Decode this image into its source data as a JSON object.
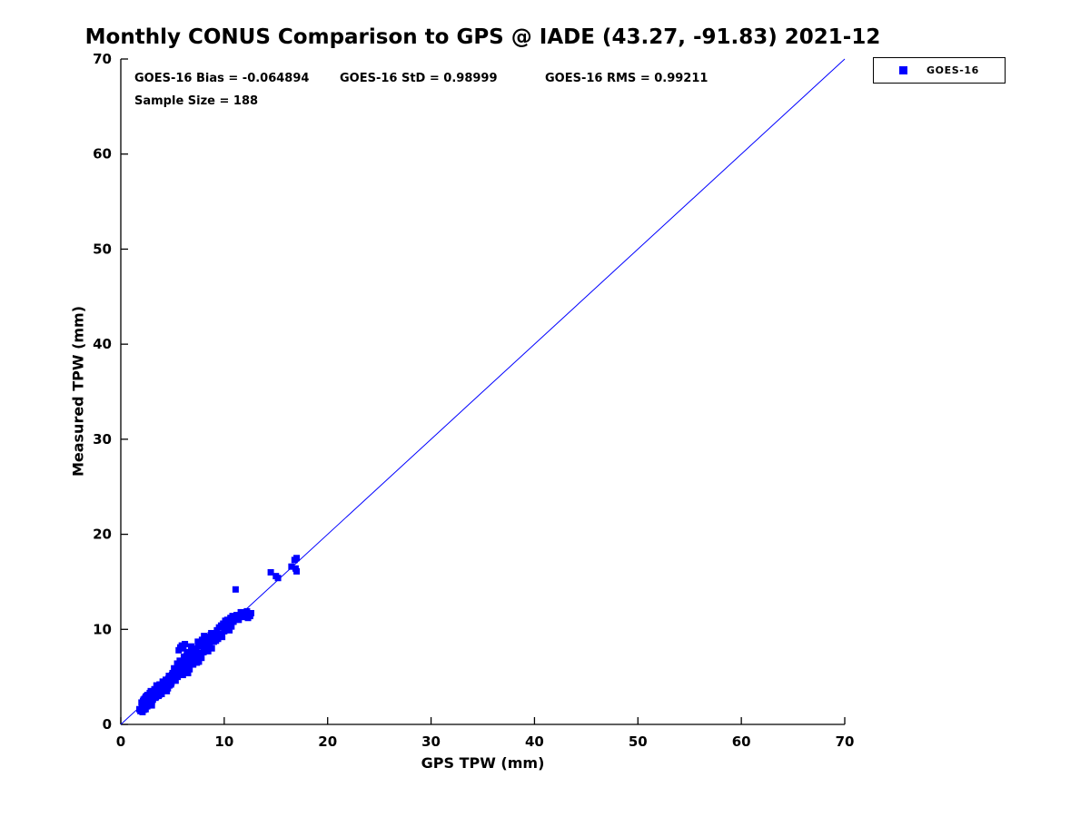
{
  "title": "Monthly CONUS Comparison to GPS @ IADE (43.27, -91.83) 2021-12",
  "annotations": {
    "bias": "GOES-16 Bias = -0.064894",
    "std": "GOES-16 StD = 0.98999",
    "rms": "GOES-16 RMS = 0.99211",
    "sample_size": "Sample Size = 188"
  },
  "legend": {
    "label": "GOES-16",
    "marker_color": "#0000ff"
  },
  "chart_data": {
    "type": "scatter",
    "title": "Monthly CONUS Comparison to GPS @ IADE (43.27, -91.83) 2021-12",
    "xlabel": "GPS TPW (mm)",
    "ylabel": "Measured TPW (mm)",
    "xlim": [
      0,
      70
    ],
    "ylim": [
      0,
      70
    ],
    "xticks": [
      0,
      10,
      20,
      30,
      40,
      50,
      60,
      70
    ],
    "yticks": [
      0,
      10,
      20,
      30,
      40,
      50,
      60,
      70
    ],
    "grid": false,
    "legend_position": "top-right-outside",
    "axis_color": "#000000",
    "reference_line": {
      "from": [
        0,
        0
      ],
      "to": [
        70,
        70
      ],
      "color": "#0000ff",
      "width": 1
    },
    "stats": {
      "bias": -0.064894,
      "std": 0.98999,
      "rms": 0.99211,
      "sample_size": 188
    },
    "series": [
      {
        "name": "GOES-16",
        "marker": "square",
        "marker_size": 7,
        "color": "#0000ff",
        "points": [
          [
            1.9,
            1.4
          ],
          [
            2.0,
            1.5
          ],
          [
            2.1,
            1.3
          ],
          [
            2.2,
            1.8
          ],
          [
            2.0,
            2.3
          ],
          [
            2.3,
            2.0
          ],
          [
            2.4,
            1.6
          ],
          [
            2.5,
            2.2
          ],
          [
            2.2,
            2.6
          ],
          [
            2.6,
            2.4
          ],
          [
            2.7,
            2.0
          ],
          [
            2.8,
            2.5
          ],
          [
            2.5,
            3.0
          ],
          [
            2.9,
            2.8
          ],
          [
            3.0,
            2.4
          ],
          [
            2.1,
            2.0
          ],
          [
            2.3,
            2.7
          ],
          [
            2.6,
            3.1
          ],
          [
            2.8,
            3.3
          ],
          [
            3.0,
            3.2
          ],
          [
            1.8,
            1.6
          ],
          [
            2.4,
            2.9
          ],
          [
            2.7,
            3.0
          ],
          [
            2.9,
            2.2
          ],
          [
            3.0,
            2.7
          ],
          [
            2.05,
            1.75
          ],
          [
            2.45,
            2.5
          ],
          [
            2.75,
            2.6
          ],
          [
            2.95,
            3.4
          ],
          [
            2.15,
            2.45
          ],
          [
            2.55,
            1.9
          ],
          [
            2.85,
            2.9
          ],
          [
            2.35,
            2.1
          ],
          [
            2.65,
            2.75
          ],
          [
            2.25,
            1.55
          ],
          [
            2.9,
            3.5
          ],
          [
            3.0,
            2.0
          ],
          [
            2.5,
            2.75
          ],
          [
            2.2,
            2.2
          ],
          [
            2.7,
            2.35
          ],
          [
            3.1,
            2.6
          ],
          [
            3.2,
            3.0
          ],
          [
            3.3,
            3.5
          ],
          [
            3.4,
            2.9
          ],
          [
            3.5,
            3.2
          ],
          [
            3.6,
            3.8
          ],
          [
            3.7,
            3.1
          ],
          [
            3.8,
            4.0
          ],
          [
            3.9,
            3.4
          ],
          [
            4.0,
            3.7
          ],
          [
            4.1,
            4.3
          ],
          [
            4.2,
            3.6
          ],
          [
            4.3,
            4.5
          ],
          [
            4.4,
            3.9
          ],
          [
            4.5,
            4.2
          ],
          [
            4.6,
            4.8
          ],
          [
            4.7,
            4.1
          ],
          [
            4.8,
            5.0
          ],
          [
            4.9,
            4.4
          ],
          [
            5.0,
            4.7
          ],
          [
            3.15,
            3.3
          ],
          [
            3.35,
            2.8
          ],
          [
            3.55,
            3.6
          ],
          [
            3.75,
            4.2
          ],
          [
            3.95,
            3.2
          ],
          [
            4.15,
            3.9
          ],
          [
            4.35,
            4.7
          ],
          [
            4.55,
            3.8
          ],
          [
            4.75,
            4.5
          ],
          [
            4.95,
            5.2
          ],
          [
            3.25,
            3.7
          ],
          [
            3.45,
            4.1
          ],
          [
            3.65,
            3.0
          ],
          [
            3.85,
            3.6
          ],
          [
            4.05,
            4.5
          ],
          [
            4.25,
            4.0
          ],
          [
            4.45,
            3.5
          ],
          [
            4.65,
            5.1
          ],
          [
            4.85,
            4.2
          ],
          [
            5.0,
            5.4
          ],
          [
            5.1,
            4.8
          ],
          [
            5.2,
            5.5
          ],
          [
            5.3,
            4.6
          ],
          [
            5.4,
            5.8
          ],
          [
            5.5,
            5.0
          ],
          [
            5.6,
            6.2
          ],
          [
            5.7,
            5.3
          ],
          [
            5.8,
            6.0
          ],
          [
            5.9,
            5.6
          ],
          [
            6.0,
            6.5
          ],
          [
            6.1,
            5.9
          ],
          [
            6.2,
            6.8
          ],
          [
            6.3,
            5.5
          ],
          [
            6.4,
            6.3
          ],
          [
            6.5,
            7.0
          ],
          [
            6.6,
            6.1
          ],
          [
            6.7,
            7.3
          ],
          [
            6.8,
            6.6
          ],
          [
            6.9,
            7.5
          ],
          [
            7.0,
            6.9
          ],
          [
            5.15,
            5.9
          ],
          [
            5.45,
            6.4
          ],
          [
            5.75,
            8.1
          ],
          [
            5.9,
            8.3
          ],
          [
            6.05,
            8.0
          ],
          [
            6.2,
            8.45
          ],
          [
            5.6,
            7.8
          ],
          [
            6.35,
            7.2
          ],
          [
            6.65,
            5.8
          ],
          [
            6.95,
            7.8
          ],
          [
            5.3,
            5.2
          ],
          [
            5.7,
            6.7
          ],
          [
            6.1,
            7.1
          ],
          [
            6.5,
            5.4
          ],
          [
            6.9,
            6.4
          ],
          [
            5.5,
            5.7
          ],
          [
            6.0,
            5.2
          ],
          [
            6.4,
            7.6
          ],
          [
            6.8,
            8.2
          ],
          [
            7.0,
            7.4
          ],
          [
            7.1,
            7.7
          ],
          [
            7.2,
            6.8
          ],
          [
            7.3,
            8.0
          ],
          [
            7.4,
            7.2
          ],
          [
            7.5,
            8.3
          ],
          [
            7.6,
            7.5
          ],
          [
            7.7,
            8.6
          ],
          [
            7.8,
            7.0
          ],
          [
            7.9,
            8.2
          ],
          [
            8.0,
            7.6
          ],
          [
            8.1,
            8.8
          ],
          [
            8.2,
            7.9
          ],
          [
            8.3,
            9.0
          ],
          [
            8.4,
            8.3
          ],
          [
            8.5,
            9.2
          ],
          [
            8.6,
            8.6
          ],
          [
            8.7,
            9.4
          ],
          [
            8.8,
            8.0
          ],
          [
            8.9,
            9.1
          ],
          [
            9.0,
            8.7
          ],
          [
            7.25,
            7.4
          ],
          [
            7.55,
            6.6
          ],
          [
            7.85,
            8.9
          ],
          [
            8.15,
            8.5
          ],
          [
            8.45,
            7.7
          ],
          [
            8.75,
            9.6
          ],
          [
            7.45,
            8.7
          ],
          [
            8.05,
            9.3
          ],
          [
            7.0,
            6.3
          ],
          [
            7.35,
            6.5
          ],
          [
            9.1,
            9.3
          ],
          [
            9.2,
            8.8
          ],
          [
            9.3,
            9.9
          ],
          [
            9.4,
            9.0
          ],
          [
            9.5,
            10.2
          ],
          [
            9.6,
            9.5
          ],
          [
            9.7,
            10.4
          ],
          [
            9.8,
            9.2
          ],
          [
            9.9,
            10.6
          ],
          [
            10.0,
            9.8
          ],
          [
            10.1,
            10.9
          ],
          [
            10.2,
            10.1
          ],
          [
            10.3,
            11.0
          ],
          [
            10.4,
            10.5
          ],
          [
            10.5,
            9.9
          ],
          [
            10.6,
            11.2
          ],
          [
            10.7,
            10.3
          ],
          [
            10.8,
            11.4
          ],
          [
            10.9,
            10.8
          ],
          [
            11.0,
            11.1
          ],
          [
            11.1,
            14.2
          ],
          [
            11.2,
            11.5
          ],
          [
            11.4,
            11.0
          ],
          [
            11.6,
            11.8
          ],
          [
            11.8,
            11.3
          ],
          [
            12.0,
            11.6
          ],
          [
            12.2,
            11.9
          ],
          [
            12.5,
            11.4
          ],
          [
            12.6,
            11.7
          ],
          [
            12.3,
            11.2
          ],
          [
            14.5,
            16.0
          ],
          [
            15.0,
            15.6
          ],
          [
            15.2,
            15.4
          ],
          [
            16.5,
            16.6
          ],
          [
            16.8,
            17.3
          ],
          [
            17.0,
            17.5
          ],
          [
            17.0,
            16.1
          ],
          [
            16.9,
            16.4
          ]
        ]
      }
    ]
  }
}
